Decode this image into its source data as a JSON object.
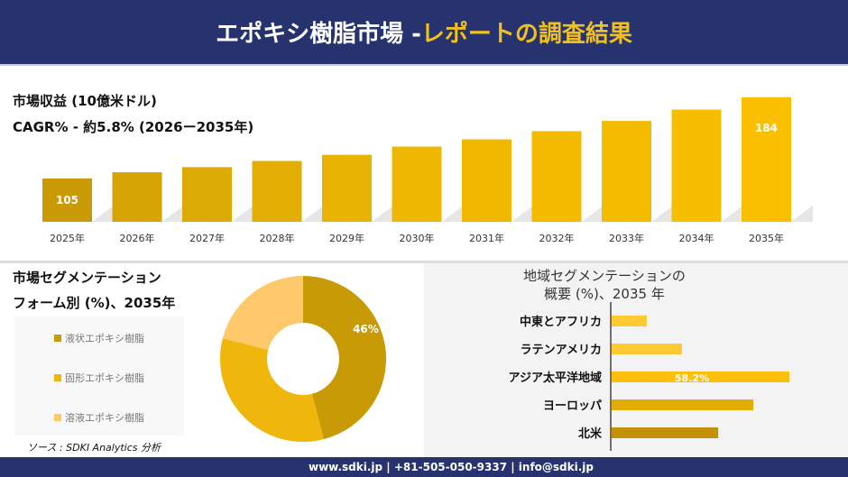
{
  "header": {
    "title_main": "エポキシ樹脂市場 -",
    "title_accent": "レポートの調査結果"
  },
  "revenue": {
    "title": "市場収益 (10億米ドル)",
    "cagr": "CAGR% - 約5.8% (2026ー2035年)"
  },
  "segment": {
    "title1": "市場セグメンテーション",
    "title2": "フォーム別 (%)、2035年"
  },
  "region": {
    "title1": "地域セグメンテーションの",
    "title2": "概要 (%)、2035 年"
  },
  "source": "ソース : SDKI Analytics 分析",
  "footer": "www.sdki.jp | +81-505-050-9337 | info@sdki.jp",
  "colors": {
    "navy": "#26336e",
    "accent": "#f2c01e"
  },
  "chart_data": [
    {
      "type": "bar",
      "categories": [
        "2025年",
        "2026年",
        "2027年",
        "2028年",
        "2029年",
        "2030年",
        "2031年",
        "2032年",
        "2033年",
        "2034年",
        "2035年"
      ],
      "values": [
        105,
        111,
        116,
        122,
        128,
        136,
        143,
        151,
        161,
        172,
        184
      ],
      "data_labels": {
        "0": "105",
        "10": "184"
      },
      "colors": [
        "#c99a06",
        "#d6a505",
        "#dcaa04",
        "#e2ae03",
        "#e8b302",
        "#eeb701",
        "#f0b900",
        "#f2bb00",
        "#f4bc00",
        "#f7be00",
        "#fac000"
      ]
    },
    {
      "type": "pie",
      "donut": true,
      "categories": [
        "液状エポキシ樹脂",
        "固形エポキシ樹脂",
        "溶液エポキシ樹脂"
      ],
      "values": [
        46,
        33,
        21
      ],
      "data_labels": [
        "46%",
        "",
        ""
      ],
      "colors": [
        "#c89a06",
        "#efb60c",
        "#fdc96b"
      ]
    },
    {
      "type": "bar",
      "orientation": "horizontal",
      "categories": [
        "中東とアフリカ",
        "ラテンアメリカ",
        "アジア太平洋地域",
        "ヨーロッパ",
        "北米"
      ],
      "values": [
        11.5,
        23,
        58.2,
        46.4,
        34.9
      ],
      "data_labels": [
        "",
        "",
        "58.2%",
        "",
        ""
      ],
      "colors": [
        "#fcc933",
        "#fcc933",
        "#fcbf0d",
        "#e2ad04",
        "#c29106"
      ]
    }
  ]
}
